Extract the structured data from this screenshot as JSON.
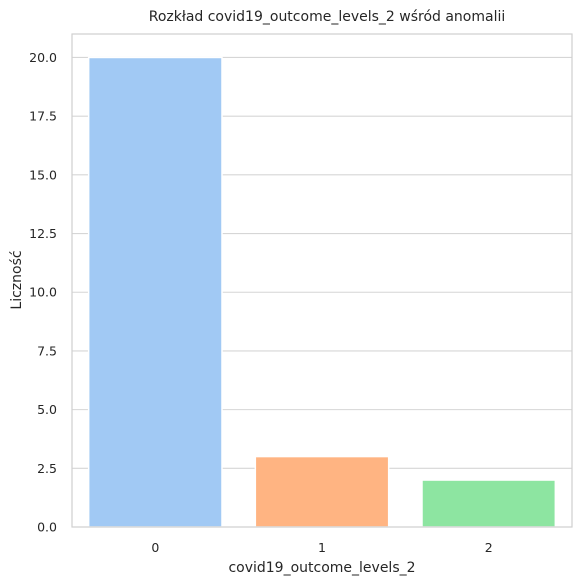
{
  "chart_data": {
    "type": "bar",
    "title": "Rozkład covid19_outcome_levels_2 wśród anomalii",
    "xlabel": "covid19_outcome_levels_2",
    "ylabel": "Liczność",
    "categories": [
      "0",
      "1",
      "2"
    ],
    "values": [
      20,
      3,
      2
    ],
    "colors": [
      "#a1c9f4",
      "#ffb482",
      "#8de5a1"
    ],
    "ylim": [
      0,
      21
    ],
    "yticks": [
      "0.0",
      "2.5",
      "5.0",
      "7.5",
      "10.0",
      "12.5",
      "15.0",
      "17.5",
      "20.0"
    ],
    "grid": "horizontal",
    "legend": "none"
  }
}
